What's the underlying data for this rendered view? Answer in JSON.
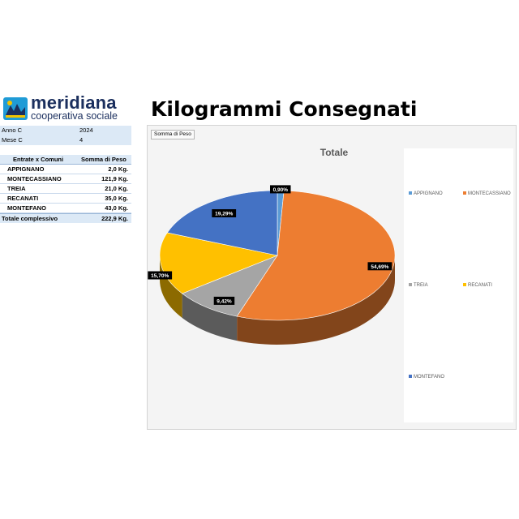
{
  "logo": {
    "name": "meridiana",
    "subtitle": "cooperativa sociale"
  },
  "page_title": "Kilogrammi Consegnati",
  "filters": [
    {
      "label": "Anno C",
      "value": "2024"
    },
    {
      "label": "Mese C",
      "value": "4"
    }
  ],
  "pivot": {
    "headers": [
      "Entrate x Comuni",
      "Somma di Peso"
    ],
    "rows": [
      {
        "name": "APPIGNANO",
        "value": "2,0 Kg."
      },
      {
        "name": "MONTECASSIANO",
        "value": "121,9 Kg."
      },
      {
        "name": "TREIA",
        "value": "21,0 Kg."
      },
      {
        "name": "RECANATI",
        "value": "35,0 Kg."
      },
      {
        "name": "MONTEFANO",
        "value": "43,0 Kg."
      }
    ],
    "total_label": "Totale complessivo",
    "total_value": "222,9 Kg."
  },
  "field_button": "Somma di Peso",
  "colors": {
    "APPIGNANO": "#5b9bd5",
    "MONTECASSIANO": "#ed7d31",
    "TREIA": "#a5a5a5",
    "RECANATI": "#ffc000",
    "MONTEFANO": "#4472c4"
  },
  "chart_data": {
    "type": "pie",
    "title": "Totale",
    "categories": [
      "APPIGNANO",
      "MONTECASSIANO",
      "TREIA",
      "RECANATI",
      "MONTEFANO"
    ],
    "values": [
      2.0,
      121.9,
      21.0,
      35.0,
      43.0
    ],
    "data_labels": [
      "0,90%",
      "54,69%",
      "9,42%",
      "15,70%",
      "19,29%"
    ],
    "legend_position": "right",
    "style": "3d"
  }
}
